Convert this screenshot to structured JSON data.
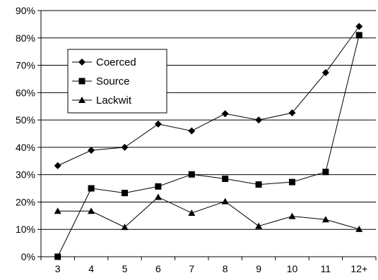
{
  "chart_data": {
    "type": "line",
    "title": "",
    "xlabel": "",
    "ylabel": "",
    "categories": [
      "3",
      "4",
      "5",
      "6",
      "7",
      "8",
      "9",
      "10",
      "11",
      "12+"
    ],
    "y_ticks": [
      "0%",
      "10%",
      "20%",
      "30%",
      "40%",
      "50%",
      "60%",
      "70%",
      "80%",
      "90%"
    ],
    "ylim": [
      0,
      90
    ],
    "y_unit": "%",
    "grid": true,
    "legend_position": "upper-left inside plot",
    "series": [
      {
        "name": "Coerced",
        "marker": "diamond",
        "values": [
          33.3,
          38.9,
          40.0,
          48.5,
          46.0,
          52.3,
          50.0,
          52.6,
          67.3,
          84.2
        ]
      },
      {
        "name": "Source",
        "marker": "square",
        "values": [
          0.0,
          25.0,
          23.3,
          25.7,
          30.1,
          28.5,
          26.4,
          27.3,
          31.0,
          81.0
        ]
      },
      {
        "name": "Lackwit",
        "marker": "triangle",
        "values": [
          16.7,
          16.7,
          10.8,
          21.8,
          16.0,
          20.2,
          11.2,
          14.8,
          13.6,
          10.1
        ]
      }
    ],
    "colors": {
      "line": "#000000",
      "grid": "#000000",
      "background": "#ffffff"
    }
  }
}
